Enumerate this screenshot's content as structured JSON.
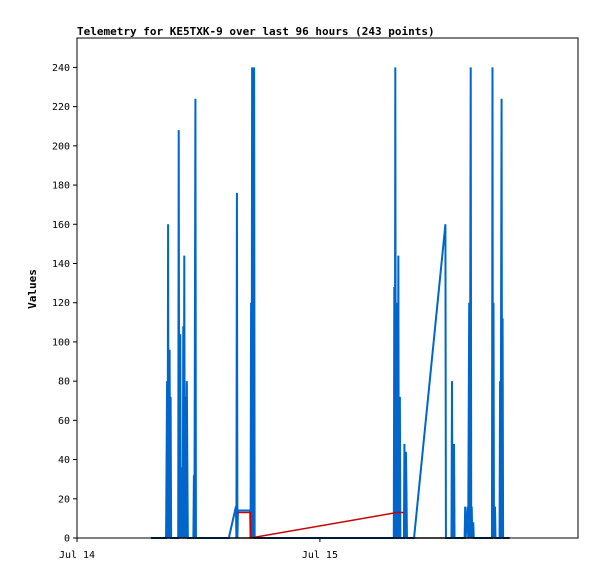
{
  "chart_data": {
    "type": "line",
    "title": "Telemetry for KE5TXK-9 over last 96 hours (243 points)",
    "ylabel": "Values",
    "xlabel": "",
    "ylim": [
      0,
      255
    ],
    "yticks": [
      0,
      20,
      40,
      60,
      80,
      100,
      120,
      140,
      160,
      180,
      200,
      220,
      240
    ],
    "xlim_hours": [
      0,
      49.5
    ],
    "xticks": [
      {
        "label": "Jul 14",
        "hour": 0
      },
      {
        "label": "Jul 15",
        "hour": 24
      }
    ],
    "grid": false,
    "legend": "none",
    "series": [
      {
        "color": "#0066cc",
        "points": [
          [
            7.3,
            0
          ],
          [
            8.8,
            0
          ],
          [
            8.9,
            80
          ],
          [
            8.95,
            0
          ],
          [
            9.0,
            160
          ],
          [
            9.05,
            0
          ],
          [
            9.15,
            96
          ],
          [
            9.2,
            0
          ],
          [
            9.25,
            72
          ],
          [
            9.3,
            0
          ],
          [
            10.0,
            0
          ],
          [
            10.05,
            208
          ],
          [
            10.1,
            0
          ],
          [
            10.2,
            104
          ],
          [
            10.25,
            0
          ],
          [
            10.4,
            36
          ],
          [
            10.45,
            0
          ],
          [
            10.5,
            108
          ],
          [
            10.55,
            0
          ],
          [
            10.6,
            144
          ],
          [
            10.65,
            0
          ],
          [
            10.7,
            72
          ],
          [
            10.75,
            0
          ],
          [
            10.85,
            80
          ],
          [
            10.9,
            40
          ],
          [
            10.95,
            0
          ],
          [
            11.5,
            0
          ],
          [
            11.55,
            32
          ],
          [
            11.6,
            0
          ],
          [
            11.7,
            224
          ],
          [
            11.75,
            0
          ],
          [
            15.0,
            0
          ],
          [
            15.7,
            16
          ],
          [
            15.75,
            0
          ],
          [
            15.8,
            176
          ],
          [
            15.85,
            0
          ],
          [
            15.9,
            14
          ],
          [
            17.1,
            14
          ],
          [
            17.15,
            0
          ],
          [
            17.2,
            120
          ],
          [
            17.25,
            0
          ],
          [
            17.3,
            240
          ],
          [
            17.35,
            0
          ],
          [
            17.4,
            120
          ],
          [
            17.45,
            0
          ],
          [
            17.5,
            240
          ],
          [
            17.55,
            0
          ],
          [
            31.3,
            0
          ],
          [
            31.35,
            128
          ],
          [
            31.4,
            0
          ],
          [
            31.45,
            240
          ],
          [
            31.5,
            0
          ],
          [
            31.55,
            120
          ],
          [
            31.6,
            0
          ],
          [
            31.7,
            0
          ],
          [
            31.75,
            144
          ],
          [
            31.8,
            0
          ],
          [
            31.9,
            72
          ],
          [
            31.95,
            0
          ],
          [
            32.3,
            0
          ],
          [
            32.35,
            48
          ],
          [
            32.4,
            0
          ],
          [
            32.5,
            44
          ],
          [
            32.55,
            24
          ],
          [
            32.6,
            0
          ],
          [
            33.3,
            0
          ],
          [
            36.4,
            160
          ],
          [
            36.45,
            0
          ],
          [
            37.0,
            0
          ],
          [
            37.05,
            80
          ],
          [
            37.1,
            0
          ],
          [
            37.25,
            48
          ],
          [
            37.3,
            0
          ],
          [
            38.3,
            0
          ],
          [
            38.35,
            16
          ],
          [
            38.4,
            0
          ],
          [
            38.6,
            16
          ],
          [
            38.65,
            0
          ],
          [
            38.75,
            120
          ],
          [
            38.8,
            0
          ],
          [
            38.9,
            240
          ],
          [
            38.95,
            0
          ],
          [
            39.0,
            16
          ],
          [
            39.05,
            0
          ],
          [
            39.15,
            8
          ],
          [
            39.2,
            0
          ],
          [
            41.0,
            0
          ],
          [
            41.05,
            240
          ],
          [
            41.1,
            0
          ],
          [
            41.15,
            120
          ],
          [
            41.2,
            0
          ],
          [
            41.3,
            16
          ],
          [
            41.35,
            0
          ],
          [
            41.75,
            0
          ],
          [
            41.8,
            80
          ],
          [
            41.85,
            0
          ],
          [
            41.95,
            224
          ],
          [
            42.0,
            0
          ],
          [
            42.05,
            112
          ],
          [
            42.1,
            0
          ],
          [
            42.75,
            0
          ]
        ]
      },
      {
        "color": "#cc0000",
        "points": [
          [
            15.9,
            13
          ],
          [
            17.15,
            13
          ],
          [
            17.15,
            0
          ],
          [
            31.6,
            13
          ],
          [
            32.3,
            13
          ]
        ]
      },
      {
        "color": "#000000",
        "points": [
          [
            7.3,
            0
          ],
          [
            42.75,
            0
          ]
        ]
      }
    ]
  }
}
